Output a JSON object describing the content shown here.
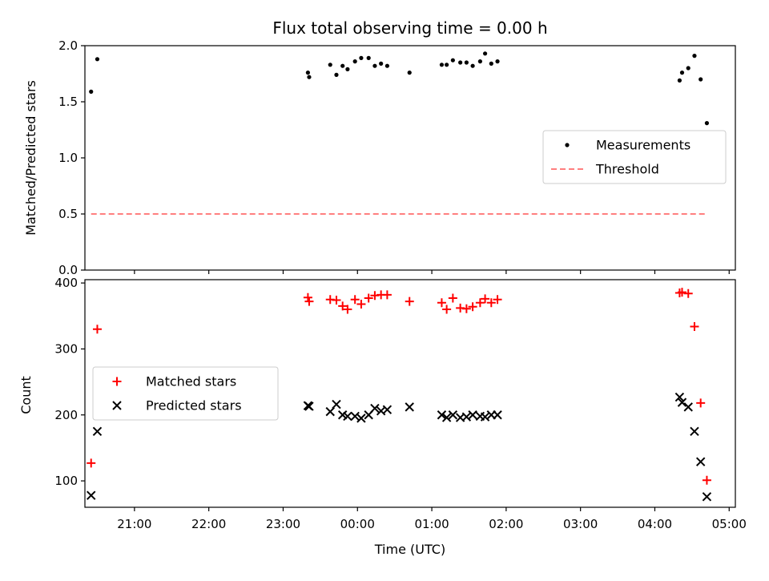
{
  "chart_data": [
    {
      "type": "scatter",
      "title": "Flux total observing time = 0.00 h",
      "ylabel": "Matched/Predicted stars",
      "xlabel": "",
      "ylim": [
        0,
        2
      ],
      "yticks": [
        "0.0",
        "0.5",
        "1.0",
        "1.5",
        "2.0"
      ],
      "xlim": [
        "20:20",
        "05:05"
      ],
      "grid": false,
      "legend_position": "right",
      "threshold": {
        "name": "Threshold",
        "value": 0.5,
        "x_start": "20:25",
        "x_end": "04:42",
        "color": "#ff7f7f"
      },
      "series": [
        {
          "name": "Measurements",
          "color": "#000000",
          "marker": "dot",
          "points": [
            [
              "20:25",
              1.59
            ],
            [
              "20:30",
              1.88
            ],
            [
              "23:20",
              1.76
            ],
            [
              "23:21",
              1.72
            ],
            [
              "23:38",
              1.83
            ],
            [
              "23:43",
              1.74
            ],
            [
              "23:48",
              1.82
            ],
            [
              "23:52",
              1.79
            ],
            [
              "23:58",
              1.86
            ],
            [
              "00:03",
              1.89
            ],
            [
              "00:09",
              1.89
            ],
            [
              "00:14",
              1.82
            ],
            [
              "00:19",
              1.84
            ],
            [
              "00:24",
              1.82
            ],
            [
              "00:42",
              1.76
            ],
            [
              "01:08",
              1.83
            ],
            [
              "01:12",
              1.83
            ],
            [
              "01:17",
              1.87
            ],
            [
              "01:23",
              1.85
            ],
            [
              "01:28",
              1.85
            ],
            [
              "01:33",
              1.82
            ],
            [
              "01:39",
              1.86
            ],
            [
              "01:43",
              1.93
            ],
            [
              "01:48",
              1.84
            ],
            [
              "01:53",
              1.86
            ],
            [
              "04:20",
              1.69
            ],
            [
              "04:22",
              1.76
            ],
            [
              "04:27",
              1.8
            ],
            [
              "04:32",
              1.91
            ],
            [
              "04:37",
              1.7
            ],
            [
              "04:42",
              1.31
            ]
          ]
        }
      ]
    },
    {
      "type": "scatter",
      "title": "",
      "xlabel": "Time (UTC)",
      "ylabel": "Count",
      "ylim": [
        60,
        405
      ],
      "yticks": [
        "100",
        "200",
        "300",
        "400"
      ],
      "xlim": [
        "20:20",
        "05:05"
      ],
      "xticks": [
        "21:00",
        "22:00",
        "23:00",
        "00:00",
        "01:00",
        "02:00",
        "03:00",
        "04:00",
        "05:00"
      ],
      "grid": false,
      "legend_position": "center-left",
      "series": [
        {
          "name": "Matched stars",
          "color": "#ff0000",
          "marker": "plus",
          "points": [
            [
              "20:25",
              127
            ],
            [
              "20:30",
              330
            ],
            [
              "23:20",
              378
            ],
            [
              "23:21",
              372
            ],
            [
              "23:38",
              375
            ],
            [
              "23:43",
              374
            ],
            [
              "23:48",
              365
            ],
            [
              "23:52",
              360
            ],
            [
              "23:58",
              375
            ],
            [
              "00:03",
              368
            ],
            [
              "00:09",
              377
            ],
            [
              "00:14",
              381
            ],
            [
              "00:19",
              382
            ],
            [
              "00:24",
              382
            ],
            [
              "00:42",
              372
            ],
            [
              "01:08",
              370
            ],
            [
              "01:12",
              360
            ],
            [
              "01:17",
              377
            ],
            [
              "01:23",
              362
            ],
            [
              "01:28",
              361
            ],
            [
              "01:33",
              364
            ],
            [
              "01:39",
              370
            ],
            [
              "01:43",
              376
            ],
            [
              "01:48",
              370
            ],
            [
              "01:53",
              375
            ],
            [
              "04:20",
              385
            ],
            [
              "04:22",
              386
            ],
            [
              "04:27",
              384
            ],
            [
              "04:32",
              334
            ],
            [
              "04:37",
              218
            ],
            [
              "04:42",
              101
            ]
          ]
        },
        {
          "name": "Predicted stars",
          "color": "#000000",
          "marker": "x",
          "points": [
            [
              "20:25",
              78
            ],
            [
              "20:30",
              175
            ],
            [
              "23:20",
              214
            ],
            [
              "23:21",
              213
            ],
            [
              "23:38",
              205
            ],
            [
              "23:43",
              216
            ],
            [
              "23:48",
              200
            ],
            [
              "23:52",
              198
            ],
            [
              "23:58",
              198
            ],
            [
              "00:03",
              195
            ],
            [
              "00:09",
              200
            ],
            [
              "00:14",
              210
            ],
            [
              "00:19",
              206
            ],
            [
              "00:24",
              208
            ],
            [
              "00:42",
              212
            ],
            [
              "01:08",
              200
            ],
            [
              "01:12",
              196
            ],
            [
              "01:17",
              200
            ],
            [
              "01:23",
              196
            ],
            [
              "01:28",
              197
            ],
            [
              "01:33",
              200
            ],
            [
              "01:39",
              198
            ],
            [
              "01:43",
              197
            ],
            [
              "01:48",
              200
            ],
            [
              "01:53",
              200
            ],
            [
              "04:20",
              227
            ],
            [
              "04:22",
              219
            ],
            [
              "04:27",
              212
            ],
            [
              "04:32",
              175
            ],
            [
              "04:37",
              129
            ],
            [
              "04:42",
              76
            ]
          ]
        }
      ]
    }
  ]
}
